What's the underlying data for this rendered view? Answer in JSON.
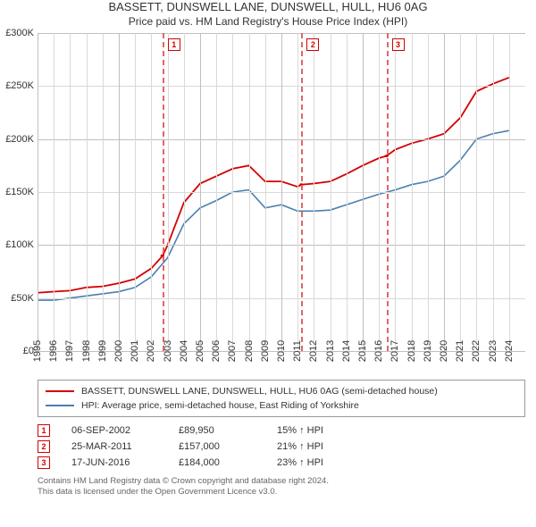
{
  "title": "BASSETT, DUNSWELL LANE, DUNSWELL, HULL, HU6 0AG",
  "subtitle": "Price paid vs. HM Land Registry's House Price Index (HPI)",
  "chart": {
    "type": "line",
    "background_color": "#ffffff",
    "grid_color": "#d9d9d9",
    "thick_grid_color": "#bfbfbf",
    "axis_font_size": 11,
    "title_font_size": 13,
    "y": {
      "min": 0,
      "max": 300000,
      "step": 50000,
      "labels": [
        "£0",
        "£50K",
        "£100K",
        "£150K",
        "£200K",
        "£250K",
        "£300K"
      ]
    },
    "x": {
      "years": [
        1995,
        1996,
        1997,
        1998,
        1999,
        2000,
        2001,
        2002,
        2003,
        2004,
        2005,
        2006,
        2007,
        2008,
        2009,
        2010,
        2011,
        2012,
        2013,
        2014,
        2015,
        2016,
        2017,
        2018,
        2019,
        2020,
        2021,
        2022,
        2023,
        2024
      ]
    },
    "series_property": {
      "name": "BASSETT, DUNSWELL LANE, DUNSWELL, HULL, HU6 0AG (semi-detached house)",
      "color": "#d40000",
      "line_width": 1.8,
      "values_by_year": {
        "1995": 55000,
        "1996": 56000,
        "1997": 57000,
        "1998": 60000,
        "1999": 61000,
        "2000": 64000,
        "2001": 68000,
        "2002": 78000,
        "2002.7": 89950,
        "2003": 100000,
        "2004": 140000,
        "2005": 158000,
        "2006": 165000,
        "2007": 172000,
        "2008": 175000,
        "2009": 160000,
        "2010": 160000,
        "2011": 155000,
        "2011.23": 157000,
        "2012": 158000,
        "2013": 160000,
        "2014": 167000,
        "2015": 175000,
        "2016": 182000,
        "2016.46": 184000,
        "2017": 190000,
        "2018": 196000,
        "2019": 200000,
        "2020": 205000,
        "2021": 220000,
        "2022": 245000,
        "2023": 252000,
        "2024": 258000
      }
    },
    "series_hpi": {
      "name": "HPI: Average price, semi-detached house, East Riding of Yorkshire",
      "color": "#4a7fb0",
      "line_width": 1.6,
      "values_by_year": {
        "1995": 48000,
        "1996": 48000,
        "1997": 50000,
        "1998": 52000,
        "1999": 54000,
        "2000": 56000,
        "2001": 60000,
        "2002": 70000,
        "2003": 88000,
        "2004": 120000,
        "2005": 135000,
        "2006": 142000,
        "2007": 150000,
        "2008": 152000,
        "2009": 135000,
        "2010": 138000,
        "2011": 132000,
        "2012": 132000,
        "2013": 133000,
        "2014": 138000,
        "2015": 143000,
        "2016": 148000,
        "2017": 152000,
        "2018": 157000,
        "2019": 160000,
        "2020": 165000,
        "2021": 180000,
        "2022": 200000,
        "2023": 205000,
        "2024": 208000
      }
    },
    "events": [
      {
        "n": "1",
        "year": 2002.68,
        "value": 89950,
        "date": "06-SEP-2002",
        "price": "£89,950",
        "diff": "15% ↑ HPI",
        "color": "#d40000"
      },
      {
        "n": "2",
        "year": 2011.23,
        "value": 157000,
        "date": "25-MAR-2011",
        "price": "£157,000",
        "diff": "21% ↑ HPI",
        "color": "#d40000"
      },
      {
        "n": "3",
        "year": 2016.46,
        "value": 184000,
        "date": "17-JUN-2016",
        "price": "£184,000",
        "diff": "23% ↑ HPI",
        "color": "#d40000"
      }
    ],
    "event_line_color": "#e06666",
    "event_marker_radius": 4
  },
  "footer": {
    "line1": "Contains HM Land Registry data © Crown copyright and database right 2024.",
    "line2": "This data is licensed under the Open Government Licence v3.0."
  }
}
